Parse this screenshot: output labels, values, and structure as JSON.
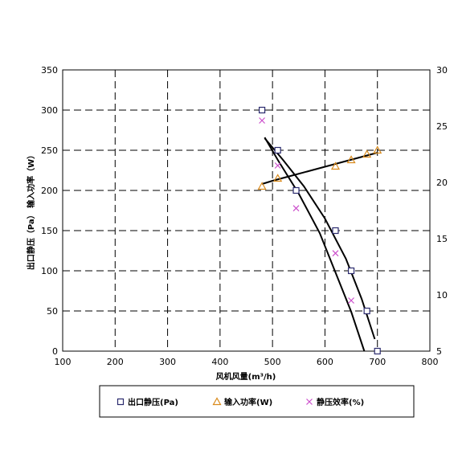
{
  "chart_data": {
    "type": "scatter",
    "xlabel": "风机风量(m³/h)",
    "ylabel": "出口静压（Pa） 输入功率（W）",
    "xlim": [
      100,
      800
    ],
    "ylim": [
      0,
      350
    ],
    "y2lim": [
      5,
      30
    ],
    "x_ticks": [
      100,
      200,
      300,
      400,
      500,
      600,
      700,
      800
    ],
    "y_ticks": [
      0,
      50,
      100,
      150,
      200,
      250,
      300,
      350
    ],
    "y2_ticks": [
      5,
      10,
      15,
      20,
      25,
      30
    ],
    "grid": true,
    "legend_position": "bottom",
    "series": [
      {
        "name": "出口静压(Pa)",
        "axis": "left",
        "marker": "square",
        "color": "#2a2a6e",
        "x": [
          480,
          510,
          545,
          620,
          650,
          680,
          700
        ],
        "y": [
          300,
          250,
          200,
          150,
          100,
          50,
          0
        ]
      },
      {
        "name": "输入功率(W)",
        "axis": "left",
        "marker": "triangle",
        "color": "#d98a1c",
        "x": [
          480,
          510,
          620,
          650,
          680,
          700
        ],
        "y": [
          205,
          215,
          230,
          238,
          245,
          250
        ]
      },
      {
        "name": "静压效率(%)",
        "axis": "right",
        "marker": "x",
        "color": "#cc4fcc",
        "x": [
          480,
          510,
          545,
          620,
          650
        ],
        "y": [
          25.5,
          21.5,
          17.7,
          13.7,
          9.5
        ]
      }
    ],
    "fit_curves": [
      {
        "axis": "left",
        "x": [
          485,
          520,
          560,
          600,
          640,
          670,
          695
        ],
        "y": [
          265,
          238,
          205,
          165,
          115,
          65,
          15
        ]
      },
      {
        "axis": "left",
        "x": [
          480,
          500,
          540,
          580,
          620,
          660,
          700
        ],
        "y": [
          208,
          212,
          219,
          226,
          233,
          240,
          247
        ]
      },
      {
        "axis": "right",
        "x": [
          485,
          510,
          550,
          590,
          620,
          650,
          675
        ],
        "y": [
          24.0,
          22.0,
          19.0,
          15.5,
          12.0,
          8.5,
          5.0
        ]
      }
    ]
  }
}
